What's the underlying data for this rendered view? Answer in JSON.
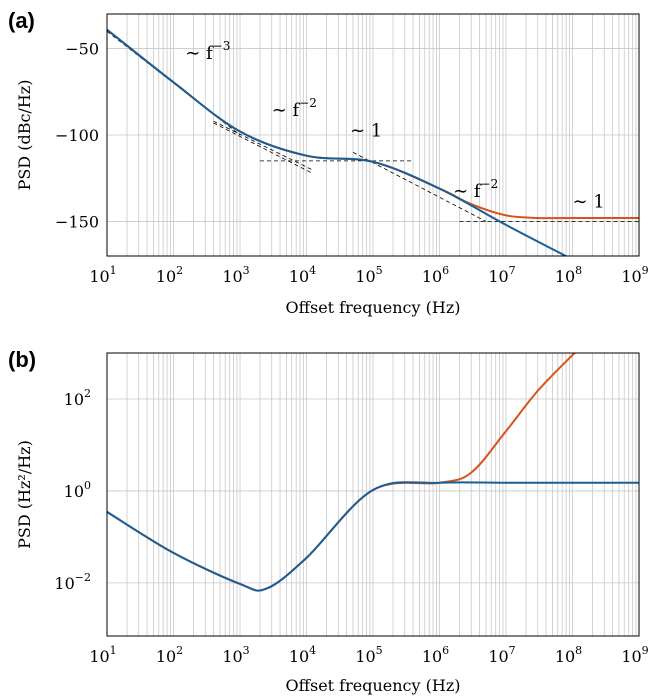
{
  "chart_data": [
    {
      "panel_label": "(a)",
      "type": "line",
      "xlabel": "Offset frequency (Hz)",
      "ylabel": "PSD (dBc/Hz)",
      "xscale": "log",
      "xlim": [
        10,
        1000000000
      ],
      "ylim": [
        -170,
        -30
      ],
      "x_ticks": [
        "1",
        "2",
        "3",
        "4",
        "5",
        "6",
        "7",
        "8",
        "9"
      ],
      "y_ticks": [
        -50,
        -100,
        -150
      ],
      "grid": true,
      "annotations": [
        {
          "text": "∼ f",
          "exp": "−3",
          "x": 150,
          "y": -56
        },
        {
          "text": "∼ f",
          "exp": "−2",
          "x": 3000,
          "y": -89
        },
        {
          "text": "∼ 1",
          "exp": "",
          "x": 45000,
          "y": -101
        },
        {
          "text": "∼ f",
          "exp": "−2",
          "x": 1600000,
          "y": -136
        },
        {
          "text": "∼ 1",
          "exp": "",
          "x": 100000000,
          "y": -142
        }
      ],
      "series": [
        {
          "color": "#d95319",
          "values": [
            [
              10,
              -39
            ],
            [
              100,
              -69.5
            ],
            [
              1000,
              -98
            ],
            [
              10000,
              -112
            ],
            [
              100000,
              -115.5
            ],
            [
              1000000,
              -131
            ],
            [
              3000000,
              -140
            ],
            [
              10000000,
              -146.5
            ],
            [
              30000000,
              -148
            ],
            [
              100000000,
              -148
            ],
            [
              1000000000,
              -148
            ]
          ]
        },
        {
          "color": "#1a5e96",
          "values": [
            [
              10,
              -39
            ],
            [
              100,
              -69.5
            ],
            [
              1000,
              -98
            ],
            [
              10000,
              -112
            ],
            [
              100000,
              -115.5
            ],
            [
              1000000,
              -131
            ],
            [
              10000000,
              -152
            ],
            [
              100000000,
              -172
            ]
          ]
        }
      ],
      "asymptotes": [
        {
          "values": [
            [
              10,
              -40
            ],
            [
              1000,
              -100
            ]
          ]
        },
        {
          "values": [
            [
              400,
              -93
            ],
            [
              12000,
              -122
            ]
          ]
        },
        {
          "values": [
            [
              400,
              -92
            ],
            [
              12000,
              -120
            ]
          ]
        },
        {
          "values": [
            [
              2000,
              -115
            ],
            [
              400000,
              -115
            ]
          ]
        },
        {
          "values": [
            [
              50000,
              -110
            ],
            [
              5000000,
              -150
            ]
          ]
        },
        {
          "values": [
            [
              2000000,
              -150
            ],
            [
              1000000000,
              -150
            ]
          ]
        }
      ]
    },
    {
      "panel_label": "(b)",
      "type": "line",
      "xlabel": "Offset frequency (Hz)",
      "ylabel": "PSD (Hz²/Hz)",
      "xscale": "log",
      "yscale": "log",
      "xlim": [
        10,
        1000000000
      ],
      "ylim": [
        0.0007,
        1000
      ],
      "x_ticks": [
        "1",
        "2",
        "3",
        "4",
        "5",
        "6",
        "7",
        "8",
        "9"
      ],
      "y_ticks": [
        "2",
        "0",
        "−2"
      ],
      "grid": true,
      "series": [
        {
          "color": "#d95319",
          "values": [
            [
              10,
              0.35
            ],
            [
              100,
              0.045
            ],
            [
              1000,
              0.0095
            ],
            [
              2500,
              0.0075
            ],
            [
              10000,
              0.035
            ],
            [
              100000,
              1.05
            ],
            [
              1000000,
              1.5
            ],
            [
              3000000,
              2.5
            ],
            [
              10000000,
              20
            ],
            [
              30000000,
              150
            ],
            [
              100000000,
              900
            ],
            [
              150000000,
              1500
            ]
          ]
        },
        {
          "color": "#1a5e96",
          "values": [
            [
              10,
              0.35
            ],
            [
              100,
              0.045
            ],
            [
              1000,
              0.0095
            ],
            [
              2500,
              0.0075
            ],
            [
              10000,
              0.035
            ],
            [
              100000,
              1.05
            ],
            [
              1000000,
              1.5
            ],
            [
              10000000,
              1.5
            ],
            [
              100000000,
              1.5
            ],
            [
              1000000000,
              1.5
            ]
          ]
        }
      ]
    }
  ]
}
